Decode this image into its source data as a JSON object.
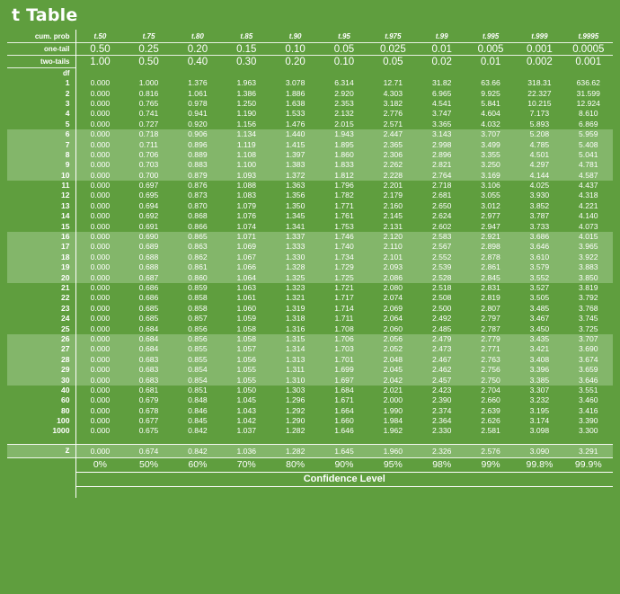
{
  "title": "t Table",
  "labels": {
    "cum_prob": "cum. prob",
    "one_tail": "one-tail",
    "two_tails": "two-tails",
    "df": "df",
    "z": "z",
    "confidence_level": "Confidence Level"
  },
  "t_headers": [
    "t.50",
    "t.75",
    "t.80",
    "t.85",
    "t.90",
    "t.95",
    "t.975",
    "t.99",
    "t.995",
    "t.999",
    "t.9995"
  ],
  "one_tail": [
    "0.50",
    "0.25",
    "0.20",
    "0.15",
    "0.10",
    "0.05",
    "0.025",
    "0.01",
    "0.005",
    "0.001",
    "0.0005"
  ],
  "two_tails": [
    "1.00",
    "0.50",
    "0.40",
    "0.30",
    "0.20",
    "0.10",
    "0.05",
    "0.02",
    "0.01",
    "0.002",
    "0.001"
  ],
  "rows": [
    {
      "df": "1",
      "v": [
        "0.000",
        "1.000",
        "1.376",
        "1.963",
        "3.078",
        "6.314",
        "12.71",
        "31.82",
        "63.66",
        "318.31",
        "636.62"
      ]
    },
    {
      "df": "2",
      "v": [
        "0.000",
        "0.816",
        "1.061",
        "1.386",
        "1.886",
        "2.920",
        "4.303",
        "6.965",
        "9.925",
        "22.327",
        "31.599"
      ]
    },
    {
      "df": "3",
      "v": [
        "0.000",
        "0.765",
        "0.978",
        "1.250",
        "1.638",
        "2.353",
        "3.182",
        "4.541",
        "5.841",
        "10.215",
        "12.924"
      ]
    },
    {
      "df": "4",
      "v": [
        "0.000",
        "0.741",
        "0.941",
        "1.190",
        "1.533",
        "2.132",
        "2.776",
        "3.747",
        "4.604",
        "7.173",
        "8.610"
      ]
    },
    {
      "df": "5",
      "v": [
        "0.000",
        "0.727",
        "0.920",
        "1.156",
        "1.476",
        "2.015",
        "2.571",
        "3.365",
        "4.032",
        "5.893",
        "6.869"
      ]
    },
    {
      "df": "6",
      "v": [
        "0.000",
        "0.718",
        "0.906",
        "1.134",
        "1.440",
        "1.943",
        "2.447",
        "3.143",
        "3.707",
        "5.208",
        "5.959"
      ]
    },
    {
      "df": "7",
      "v": [
        "0.000",
        "0.711",
        "0.896",
        "1.119",
        "1.415",
        "1.895",
        "2.365",
        "2.998",
        "3.499",
        "4.785",
        "5.408"
      ]
    },
    {
      "df": "8",
      "v": [
        "0.000",
        "0.706",
        "0.889",
        "1.108",
        "1.397",
        "1.860",
        "2.306",
        "2.896",
        "3.355",
        "4.501",
        "5.041"
      ]
    },
    {
      "df": "9",
      "v": [
        "0.000",
        "0.703",
        "0.883",
        "1.100",
        "1.383",
        "1.833",
        "2.262",
        "2.821",
        "3.250",
        "4.297",
        "4.781"
      ]
    },
    {
      "df": "10",
      "v": [
        "0.000",
        "0.700",
        "0.879",
        "1.093",
        "1.372",
        "1.812",
        "2.228",
        "2.764",
        "3.169",
        "4.144",
        "4.587"
      ]
    },
    {
      "df": "11",
      "v": [
        "0.000",
        "0.697",
        "0.876",
        "1.088",
        "1.363",
        "1.796",
        "2.201",
        "2.718",
        "3.106",
        "4.025",
        "4.437"
      ]
    },
    {
      "df": "12",
      "v": [
        "0.000",
        "0.695",
        "0.873",
        "1.083",
        "1.356",
        "1.782",
        "2.179",
        "2.681",
        "3.055",
        "3.930",
        "4.318"
      ]
    },
    {
      "df": "13",
      "v": [
        "0.000",
        "0.694",
        "0.870",
        "1.079",
        "1.350",
        "1.771",
        "2.160",
        "2.650",
        "3.012",
        "3.852",
        "4.221"
      ]
    },
    {
      "df": "14",
      "v": [
        "0.000",
        "0.692",
        "0.868",
        "1.076",
        "1.345",
        "1.761",
        "2.145",
        "2.624",
        "2.977",
        "3.787",
        "4.140"
      ]
    },
    {
      "df": "15",
      "v": [
        "0.000",
        "0.691",
        "0.866",
        "1.074",
        "1.341",
        "1.753",
        "2.131",
        "2.602",
        "2.947",
        "3.733",
        "4.073"
      ]
    },
    {
      "df": "16",
      "v": [
        "0.000",
        "0.690",
        "0.865",
        "1.071",
        "1.337",
        "1.746",
        "2.120",
        "2.583",
        "2.921",
        "3.686",
        "4.015"
      ]
    },
    {
      "df": "17",
      "v": [
        "0.000",
        "0.689",
        "0.863",
        "1.069",
        "1.333",
        "1.740",
        "2.110",
        "2.567",
        "2.898",
        "3.646",
        "3.965"
      ]
    },
    {
      "df": "18",
      "v": [
        "0.000",
        "0.688",
        "0.862",
        "1.067",
        "1.330",
        "1.734",
        "2.101",
        "2.552",
        "2.878",
        "3.610",
        "3.922"
      ]
    },
    {
      "df": "19",
      "v": [
        "0.000",
        "0.688",
        "0.861",
        "1.066",
        "1.328",
        "1.729",
        "2.093",
        "2.539",
        "2.861",
        "3.579",
        "3.883"
      ]
    },
    {
      "df": "20",
      "v": [
        "0.000",
        "0.687",
        "0.860",
        "1.064",
        "1.325",
        "1.725",
        "2.086",
        "2.528",
        "2.845",
        "3.552",
        "3.850"
      ]
    },
    {
      "df": "21",
      "v": [
        "0.000",
        "0.686",
        "0.859",
        "1.063",
        "1.323",
        "1.721",
        "2.080",
        "2.518",
        "2.831",
        "3.527",
        "3.819"
      ]
    },
    {
      "df": "22",
      "v": [
        "0.000",
        "0.686",
        "0.858",
        "1.061",
        "1.321",
        "1.717",
        "2.074",
        "2.508",
        "2.819",
        "3.505",
        "3.792"
      ]
    },
    {
      "df": "23",
      "v": [
        "0.000",
        "0.685",
        "0.858",
        "1.060",
        "1.319",
        "1.714",
        "2.069",
        "2.500",
        "2.807",
        "3.485",
        "3.768"
      ]
    },
    {
      "df": "24",
      "v": [
        "0.000",
        "0.685",
        "0.857",
        "1.059",
        "1.318",
        "1.711",
        "2.064",
        "2.492",
        "2.797",
        "3.467",
        "3.745"
      ]
    },
    {
      "df": "25",
      "v": [
        "0.000",
        "0.684",
        "0.856",
        "1.058",
        "1.316",
        "1.708",
        "2.060",
        "2.485",
        "2.787",
        "3.450",
        "3.725"
      ]
    },
    {
      "df": "26",
      "v": [
        "0.000",
        "0.684",
        "0.856",
        "1.058",
        "1.315",
        "1.706",
        "2.056",
        "2.479",
        "2.779",
        "3.435",
        "3.707"
      ]
    },
    {
      "df": "27",
      "v": [
        "0.000",
        "0.684",
        "0.855",
        "1.057",
        "1.314",
        "1.703",
        "2.052",
        "2.473",
        "2.771",
        "3.421",
        "3.690"
      ]
    },
    {
      "df": "28",
      "v": [
        "0.000",
        "0.683",
        "0.855",
        "1.056",
        "1.313",
        "1.701",
        "2.048",
        "2.467",
        "2.763",
        "3.408",
        "3.674"
      ]
    },
    {
      "df": "29",
      "v": [
        "0.000",
        "0.683",
        "0.854",
        "1.055",
        "1.311",
        "1.699",
        "2.045",
        "2.462",
        "2.756",
        "3.396",
        "3.659"
      ]
    },
    {
      "df": "30",
      "v": [
        "0.000",
        "0.683",
        "0.854",
        "1.055",
        "1.310",
        "1.697",
        "2.042",
        "2.457",
        "2.750",
        "3.385",
        "3.646"
      ]
    },
    {
      "df": "40",
      "v": [
        "0.000",
        "0.681",
        "0.851",
        "1.050",
        "1.303",
        "1.684",
        "2.021",
        "2.423",
        "2.704",
        "3.307",
        "3.551"
      ]
    },
    {
      "df": "60",
      "v": [
        "0.000",
        "0.679",
        "0.848",
        "1.045",
        "1.296",
        "1.671",
        "2.000",
        "2.390",
        "2.660",
        "3.232",
        "3.460"
      ]
    },
    {
      "df": "80",
      "v": [
        "0.000",
        "0.678",
        "0.846",
        "1.043",
        "1.292",
        "1.664",
        "1.990",
        "2.374",
        "2.639",
        "3.195",
        "3.416"
      ]
    },
    {
      "df": "100",
      "v": [
        "0.000",
        "0.677",
        "0.845",
        "1.042",
        "1.290",
        "1.660",
        "1.984",
        "2.364",
        "2.626",
        "3.174",
        "3.390"
      ]
    },
    {
      "df": "1000",
      "v": [
        "0.000",
        "0.675",
        "0.842",
        "1.037",
        "1.282",
        "1.646",
        "1.962",
        "2.330",
        "2.581",
        "3.098",
        "3.300"
      ]
    }
  ],
  "z_row": [
    "0.000",
    "0.674",
    "0.842",
    "1.036",
    "1.282",
    "1.645",
    "1.960",
    "2.326",
    "2.576",
    "3.090",
    "3.291"
  ],
  "confidence": [
    "0%",
    "50%",
    "60%",
    "70%",
    "80%",
    "90%",
    "95%",
    "98%",
    "99%",
    "99.8%",
    "99.9%"
  ],
  "colors": {
    "background": "#5f9e3e",
    "band": "#83b66a",
    "text": "#ffffff"
  }
}
